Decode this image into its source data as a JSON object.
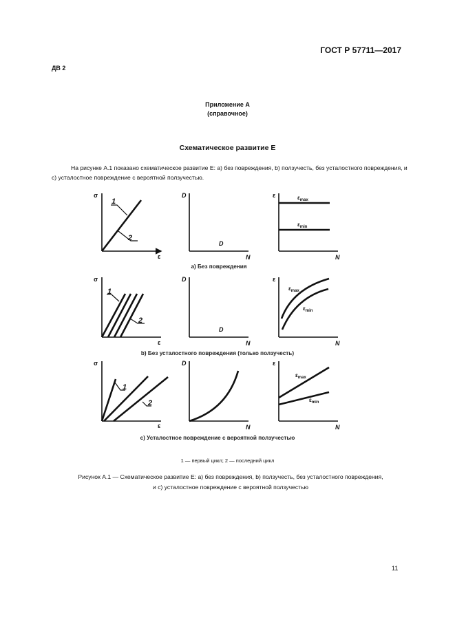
{
  "header": {
    "standard": "ГОСТ Р 57711—2017",
    "code": "ДВ 2"
  },
  "appendix": {
    "title": "Приложение А",
    "subtitle": "(справочное)"
  },
  "section_title": "Схематическое развитие Е",
  "paragraph": "На рисунке А.1 показано схематическое развитие Е: а) без повреждения, b) ползучесть, без усталостного повреждения, и с) усталостное повреждение с вероятной ползучестью.",
  "figure": {
    "axis": {
      "sigma": "σ",
      "eps": "ε",
      "D": "D",
      "N": "N"
    },
    "labels": {
      "one": "1",
      "two": "2",
      "D": "D",
      "eps_max_base": "ε",
      "eps_max_sub": "max",
      "eps_min_base": "ε",
      "eps_min_sub": "min"
    },
    "captions": {
      "a": "a) Без повреждения",
      "b": "b) Без усталостного повреждения (только ползучесть)",
      "c": "c) Усталостное повреждение с вероятной ползучестью"
    },
    "legend": "1 — первый цикл; 2 — последний цикл",
    "caption_line1": "Рисунок  А.1 — Схематическое развитие Е: а) без повреждения, b) ползучесть, без усталостного повреждения,",
    "caption_line2": "и с) усталостное повреждение с вероятной ползучестью"
  },
  "page_number": "11"
}
